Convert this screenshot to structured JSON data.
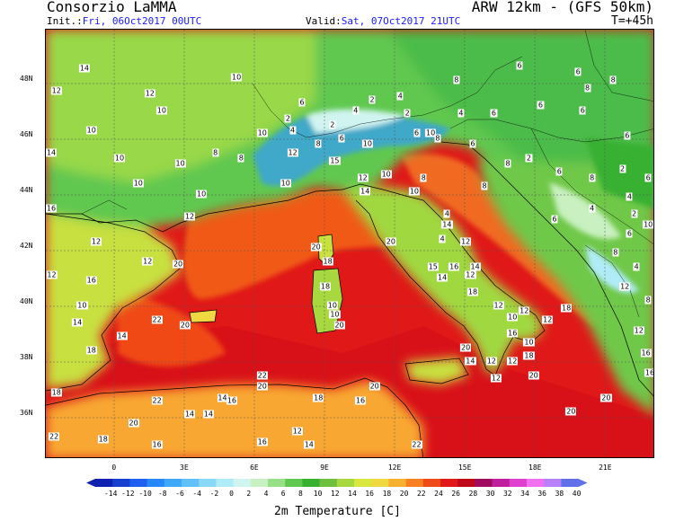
{
  "header": {
    "organization": "Consorzio LaMMA",
    "model": "ARW 12km - (GFS 50km)",
    "init_label": "Init.:",
    "init_value": "Fri, 06Oct2017 00UTC",
    "valid_label": "Valid:",
    "valid_value": "Sat, 07Oct2017 21UTC",
    "forecast_step": "T=+45h"
  },
  "map": {
    "latitude_labels": [
      "48N",
      "46N",
      "44N",
      "42N",
      "40N",
      "38N",
      "36N"
    ],
    "longitude_labels": [
      "0",
      "3E",
      "6E",
      "9E",
      "12E",
      "15E",
      "18E",
      "21E"
    ],
    "temperature_labels": [
      {
        "v": "14",
        "lon": -1.3,
        "lat": 48.4
      },
      {
        "v": "12",
        "lon": -2.5,
        "lat": 47.6
      },
      {
        "v": "12",
        "lon": 1.5,
        "lat": 47.5
      },
      {
        "v": "10",
        "lon": 2.0,
        "lat": 46.9
      },
      {
        "v": "10",
        "lon": -1.0,
        "lat": 46.2
      },
      {
        "v": "10",
        "lon": 0.2,
        "lat": 45.2
      },
      {
        "v": "10",
        "lon": 5.2,
        "lat": 48.1
      },
      {
        "v": "8",
        "lon": 4.3,
        "lat": 45.4
      },
      {
        "v": "10",
        "lon": 2.8,
        "lat": 45.0
      },
      {
        "v": "14",
        "lon": -2.8,
        "lat": 45.4
      },
      {
        "v": "10",
        "lon": 1.0,
        "lat": 44.3
      },
      {
        "v": "10",
        "lon": 3.7,
        "lat": 43.9
      },
      {
        "v": "12",
        "lon": 3.2,
        "lat": 43.1
      },
      {
        "v": "16",
        "lon": -3.6,
        "lat": 43.4
      },
      {
        "v": "12",
        "lon": -0.8,
        "lat": 42.2
      },
      {
        "v": "12",
        "lon": 1.4,
        "lat": 41.5
      },
      {
        "v": "20",
        "lon": 2.7,
        "lat": 41.4
      },
      {
        "v": "12",
        "lon": -2.7,
        "lat": 41.0
      },
      {
        "v": "16",
        "lon": -1.0,
        "lat": 40.8
      },
      {
        "v": "10",
        "lon": -1.4,
        "lat": 39.9
      },
      {
        "v": "14",
        "lon": -1.6,
        "lat": 39.3
      },
      {
        "v": "14",
        "lon": 0.3,
        "lat": 38.8
      },
      {
        "v": "18",
        "lon": -1.0,
        "lat": 38.3
      },
      {
        "v": "18",
        "lon": -2.5,
        "lat": 36.8
      },
      {
        "v": "22",
        "lon": 1.8,
        "lat": 39.4
      },
      {
        "v": "20",
        "lon": 3.0,
        "lat": 39.2
      },
      {
        "v": "22",
        "lon": -2.6,
        "lat": 35.2
      },
      {
        "v": "18",
        "lon": -0.5,
        "lat": 35.1
      },
      {
        "v": "20",
        "lon": 0.8,
        "lat": 35.7
      },
      {
        "v": "16",
        "lon": 1.8,
        "lat": 34.9
      },
      {
        "v": "22",
        "lon": 1.8,
        "lat": 36.5
      },
      {
        "v": "14",
        "lon": 3.2,
        "lat": 36.0
      },
      {
        "v": "14",
        "lon": 4.0,
        "lat": 36.0
      },
      {
        "v": "14",
        "lon": 4.6,
        "lat": 36.6
      },
      {
        "v": "16",
        "lon": 5.0,
        "lat": 36.5
      },
      {
        "v": "22",
        "lon": 6.3,
        "lat": 37.4
      },
      {
        "v": "20",
        "lon": 6.3,
        "lat": 37.0
      },
      {
        "v": "16",
        "lon": 6.3,
        "lat": 35.0
      },
      {
        "v": "12",
        "lon": 7.8,
        "lat": 35.4
      },
      {
        "v": "14",
        "lon": 8.3,
        "lat": 34.9
      },
      {
        "v": "18",
        "lon": 8.7,
        "lat": 36.6
      },
      {
        "v": "16",
        "lon": 10.5,
        "lat": 36.5
      },
      {
        "v": "20",
        "lon": 11.1,
        "lat": 37.0
      },
      {
        "v": "22",
        "lon": 12.9,
        "lat": 34.9
      },
      {
        "v": "20",
        "lon": 8.6,
        "lat": 42.0
      },
      {
        "v": "18",
        "lon": 9.1,
        "lat": 41.5
      },
      {
        "v": "18",
        "lon": 9.0,
        "lat": 40.6
      },
      {
        "v": "10",
        "lon": 9.3,
        "lat": 39.9
      },
      {
        "v": "20",
        "lon": 9.6,
        "lat": 39.2
      },
      {
        "v": "10",
        "lon": 9.4,
        "lat": 39.6
      },
      {
        "v": "20",
        "lon": 11.8,
        "lat": 42.2
      },
      {
        "v": "14",
        "lon": 10.7,
        "lat": 44.0
      },
      {
        "v": "10",
        "lon": 11.6,
        "lat": 44.6
      },
      {
        "v": "8",
        "lon": 13.2,
        "lat": 44.5
      },
      {
        "v": "10",
        "lon": 12.8,
        "lat": 44.0
      },
      {
        "v": "12",
        "lon": 10.6,
        "lat": 44.5
      },
      {
        "v": "15",
        "lon": 9.4,
        "lat": 45.1
      },
      {
        "v": "10",
        "lon": 7.3,
        "lat": 44.3
      },
      {
        "v": "12",
        "lon": 7.6,
        "lat": 45.4
      },
      {
        "v": "10",
        "lon": 6.3,
        "lat": 46.1
      },
      {
        "v": "8",
        "lon": 5.4,
        "lat": 45.2
      },
      {
        "v": "2",
        "lon": 7.4,
        "lat": 46.6
      },
      {
        "v": "6",
        "lon": 8.0,
        "lat": 47.2
      },
      {
        "v": "4",
        "lon": 7.6,
        "lat": 46.2
      },
      {
        "v": "2",
        "lon": 9.3,
        "lat": 46.4
      },
      {
        "v": "4",
        "lon": 10.3,
        "lat": 46.9
      },
      {
        "v": "2",
        "lon": 11.0,
        "lat": 47.3
      },
      {
        "v": "4",
        "lon": 12.2,
        "lat": 47.4
      },
      {
        "v": "2",
        "lon": 12.5,
        "lat": 46.8
      },
      {
        "v": "6",
        "lon": 12.9,
        "lat": 46.1
      },
      {
        "v": "10",
        "lon": 13.5,
        "lat": 46.1
      },
      {
        "v": "8",
        "lon": 13.8,
        "lat": 45.9
      },
      {
        "v": "8",
        "lon": 8.7,
        "lat": 45.7
      },
      {
        "v": "6",
        "lon": 9.7,
        "lat": 45.9
      },
      {
        "v": "10",
        "lon": 10.8,
        "lat": 45.7
      },
      {
        "v": "14",
        "lon": 14.2,
        "lat": 42.8
      },
      {
        "v": "4",
        "lon": 14.0,
        "lat": 42.3
      },
      {
        "v": "12",
        "lon": 15.0,
        "lat": 42.2
      },
      {
        "v": "15",
        "lon": 13.6,
        "lat": 41.3
      },
      {
        "v": "16",
        "lon": 14.5,
        "lat": 41.3
      },
      {
        "v": "14",
        "lon": 15.4,
        "lat": 41.3
      },
      {
        "v": "14",
        "lon": 14.0,
        "lat": 40.9
      },
      {
        "v": "12",
        "lon": 15.2,
        "lat": 41.0
      },
      {
        "v": "18",
        "lon": 15.3,
        "lat": 40.4
      },
      {
        "v": "12",
        "lon": 16.4,
        "lat": 39.9
      },
      {
        "v": "10",
        "lon": 17.0,
        "lat": 39.5
      },
      {
        "v": "12",
        "lon": 17.5,
        "lat": 39.7
      },
      {
        "v": "16",
        "lon": 17.0,
        "lat": 38.9
      },
      {
        "v": "10",
        "lon": 17.7,
        "lat": 38.6
      },
      {
        "v": "18",
        "lon": 17.7,
        "lat": 38.1
      },
      {
        "v": "12",
        "lon": 17.0,
        "lat": 37.9
      },
      {
        "v": "20",
        "lon": 17.9,
        "lat": 37.4
      },
      {
        "v": "12",
        "lon": 16.3,
        "lat": 37.3
      },
      {
        "v": "14",
        "lon": 15.2,
        "lat": 37.9
      },
      {
        "v": "20",
        "lon": 15.0,
        "lat": 38.4
      },
      {
        "v": "12",
        "lon": 16.1,
        "lat": 37.9
      },
      {
        "v": "18",
        "lon": 19.3,
        "lat": 39.8
      },
      {
        "v": "12",
        "lon": 18.5,
        "lat": 39.4
      },
      {
        "v": "20",
        "lon": 19.5,
        "lat": 36.1
      },
      {
        "v": "20",
        "lon": 21.0,
        "lat": 36.6
      },
      {
        "v": "8",
        "lon": 14.6,
        "lat": 48.0
      },
      {
        "v": "6",
        "lon": 17.3,
        "lat": 48.5
      },
      {
        "v": "6",
        "lon": 19.8,
        "lat": 48.3
      },
      {
        "v": "8",
        "lon": 20.2,
        "lat": 47.7
      },
      {
        "v": "8",
        "lon": 21.3,
        "lat": 48.0
      },
      {
        "v": "6",
        "lon": 18.2,
        "lat": 47.1
      },
      {
        "v": "6",
        "lon": 20.0,
        "lat": 46.9
      },
      {
        "v": "4",
        "lon": 14.8,
        "lat": 46.8
      },
      {
        "v": "6",
        "lon": 16.2,
        "lat": 46.8
      },
      {
        "v": "6",
        "lon": 21.9,
        "lat": 46.0
      },
      {
        "v": "6",
        "lon": 15.3,
        "lat": 45.7
      },
      {
        "v": "8",
        "lon": 16.8,
        "lat": 45.0
      },
      {
        "v": "2",
        "lon": 17.7,
        "lat": 45.2
      },
      {
        "v": "6",
        "lon": 19.0,
        "lat": 44.7
      },
      {
        "v": "8",
        "lon": 20.4,
        "lat": 44.5
      },
      {
        "v": "2",
        "lon": 21.7,
        "lat": 44.8
      },
      {
        "v": "6",
        "lon": 22.8,
        "lat": 44.5
      },
      {
        "v": "4",
        "lon": 20.4,
        "lat": 43.4
      },
      {
        "v": "4",
        "lon": 22.0,
        "lat": 43.8
      },
      {
        "v": "2",
        "lon": 22.2,
        "lat": 43.2
      },
      {
        "v": "6",
        "lon": 22.0,
        "lat": 42.5
      },
      {
        "v": "10",
        "lon": 22.8,
        "lat": 42.8
      },
      {
        "v": "8",
        "lon": 21.4,
        "lat": 41.8
      },
      {
        "v": "4",
        "lon": 22.3,
        "lat": 41.3
      },
      {
        "v": "12",
        "lon": 21.8,
        "lat": 40.6
      },
      {
        "v": "8",
        "lon": 22.8,
        "lat": 40.1
      },
      {
        "v": "12",
        "lon": 22.4,
        "lat": 39.0
      },
      {
        "v": "16",
        "lon": 22.7,
        "lat": 38.2
      },
      {
        "v": "16",
        "lon": 23.0,
        "lat": 37.5
      },
      {
        "v": "6",
        "lon": 18.8,
        "lat": 43.0
      },
      {
        "v": "4",
        "lon": 14.2,
        "lat": 43.2
      },
      {
        "v": "8",
        "lon": 15.8,
        "lat": 44.2
      }
    ]
  },
  "colorbar": {
    "title": "2m Temperature [C]",
    "labels": [
      "-14",
      "-12",
      "-10",
      "-8",
      "-6",
      "-4",
      "-2",
      "0",
      "2",
      "4",
      "6",
      "8",
      "10",
      "12",
      "14",
      "16",
      "18",
      "20",
      "22",
      "24",
      "26",
      "28",
      "30",
      "32",
      "34",
      "36",
      "38",
      "40"
    ],
    "colors": [
      "#1020b0",
      "#1840d0",
      "#2060f0",
      "#2888f8",
      "#40a8f8",
      "#60c0f8",
      "#88d8f8",
      "#b0ecf8",
      "#d0f4f0",
      "#c8f0c0",
      "#98e088",
      "#60c850",
      "#38b030",
      "#70c040",
      "#a8d840",
      "#d8e840",
      "#f0d840",
      "#f8b030",
      "#f88020",
      "#f04a18",
      "#e01818",
      "#c00818",
      "#a00c60",
      "#c020a0",
      "#e040d0",
      "#f070f0",
      "#b880f8",
      "#6070e8"
    ]
  }
}
